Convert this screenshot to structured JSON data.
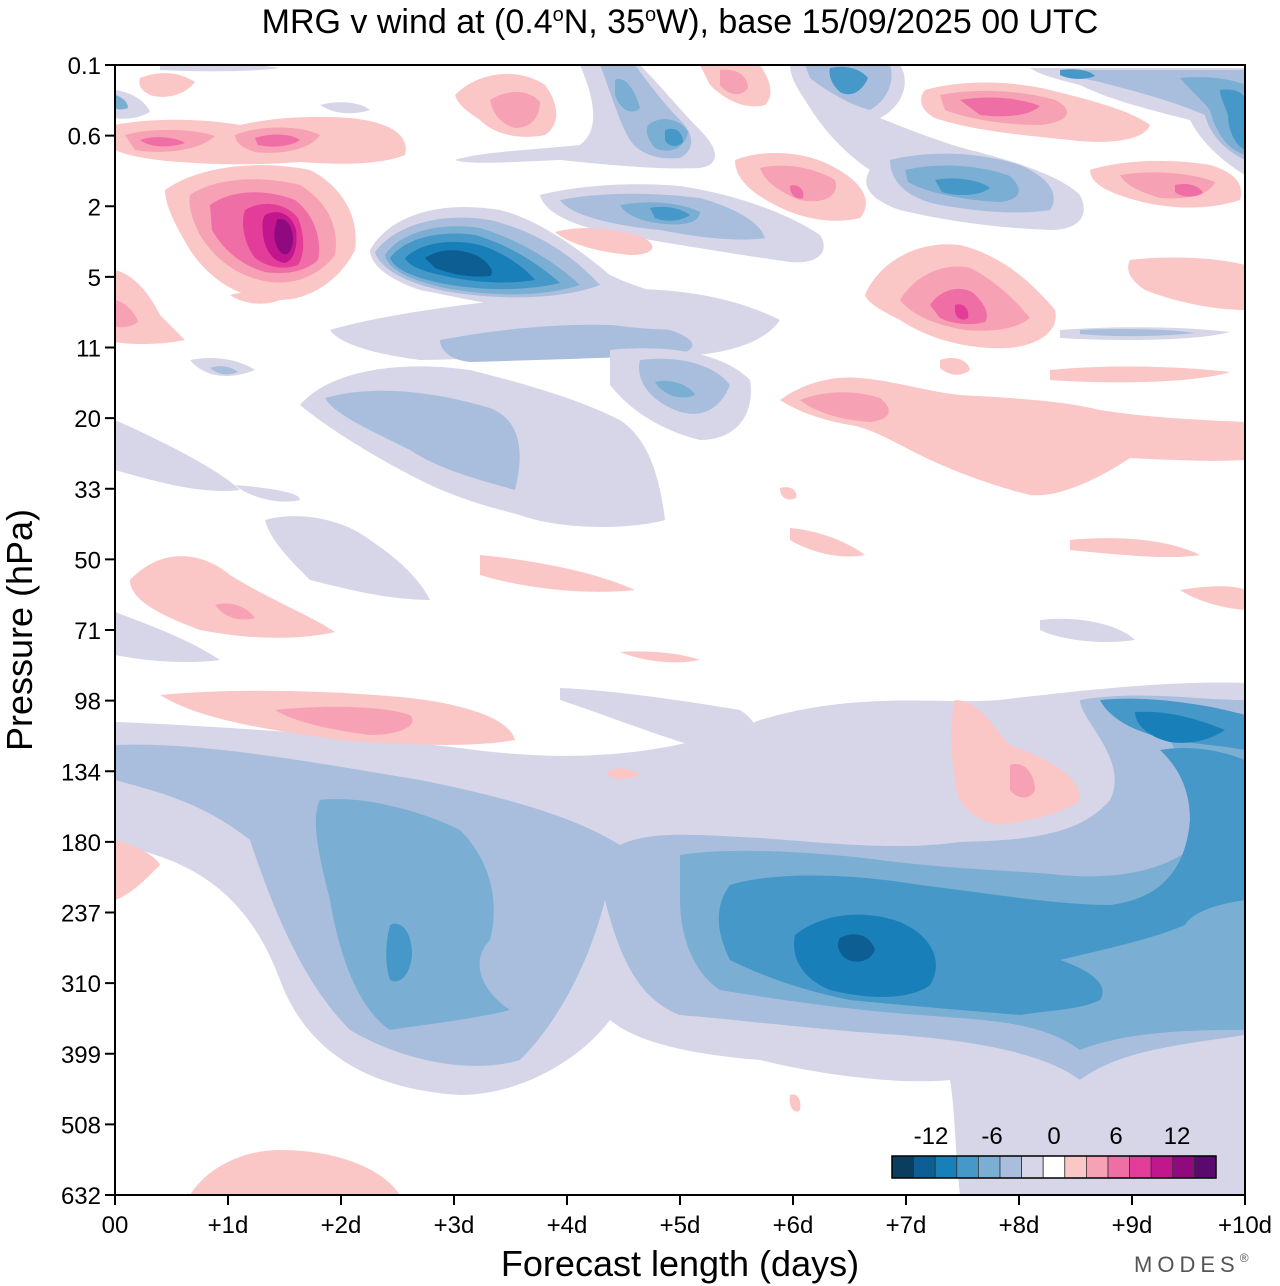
{
  "chart_data": {
    "type": "heatmap",
    "title": "MRG v wind at (0.4°N, 35°W),  base 15/09/2025  00 UTC",
    "title_parts": {
      "prefix": "MRG v wind at (0.4",
      "deg1": "o",
      "mid": "N, 35",
      "deg2": "o",
      "suffix": "W),  base 15/09/2025  00 UTC"
    },
    "xlabel": "Forecast length (days)",
    "ylabel": "Pressure (hPa)",
    "x_ticks": [
      "00",
      "+1d",
      "+2d",
      "+3d",
      "+4d",
      "+5d",
      "+6d",
      "+7d",
      "+8d",
      "+9d",
      "+10d"
    ],
    "x_range_days": [
      0,
      10
    ],
    "y_ticks": [
      "0.1",
      "0.6",
      "2",
      "5",
      "11",
      "20",
      "33",
      "50",
      "71",
      "98",
      "134",
      "180",
      "237",
      "310",
      "399",
      "508",
      "632"
    ],
    "y_range_hpa": [
      0.1,
      632
    ],
    "colorbar": {
      "labels": [
        "-12",
        "-6",
        "0",
        "6",
        "12"
      ],
      "colors": [
        "#0b3e5e",
        "#0d5e92",
        "#197fb9",
        "#4698c8",
        "#7aaed3",
        "#a9bedc",
        "#d6d6e8",
        "#ffffff",
        "#fbc6c6",
        "#f7a1b4",
        "#f06ea6",
        "#e43d99",
        "#c1168d",
        "#8f0a7f",
        "#5a0a6e"
      ]
    },
    "features": [
      {
        "name": "upper-positive-anomaly",
        "day": 1.5,
        "hpa": 3.5,
        "value": 15
      },
      {
        "name": "upper-negative-anomaly",
        "day": 3.0,
        "hpa": 4.5,
        "value": -12
      },
      {
        "name": "lower-negative-anomaly",
        "day": 6.5,
        "hpa": 270,
        "value": -12
      }
    ]
  },
  "branding": {
    "text": "MODES",
    "mark": "®"
  }
}
